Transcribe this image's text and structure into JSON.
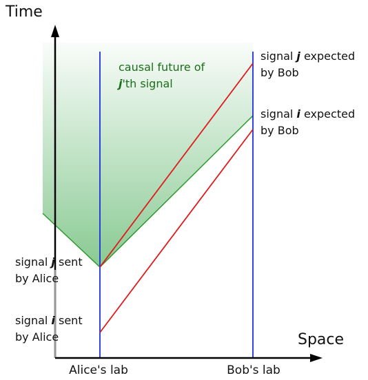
{
  "axes": {
    "y_label": "Time",
    "x_label": "Space"
  },
  "labs": {
    "alice": "Alice's lab",
    "bob": "Bob's lab"
  },
  "cone_label": {
    "line1": "causal future of",
    "line2": [
      "j",
      "'th signal"
    ]
  },
  "events": {
    "j_expected": {
      "line1": [
        "signal ",
        "j",
        " expected"
      ],
      "line2": "by Bob"
    },
    "i_expected": {
      "line1": [
        "signal ",
        "i",
        " expected"
      ],
      "line2": "by Bob"
    },
    "j_sent": {
      "line1": [
        "signal ",
        "j",
        " sent"
      ],
      "line2": "by Alice"
    },
    "i_sent": {
      "line1": [
        "signal ",
        "i",
        " sent"
      ],
      "line2": "by Alice"
    }
  }
}
